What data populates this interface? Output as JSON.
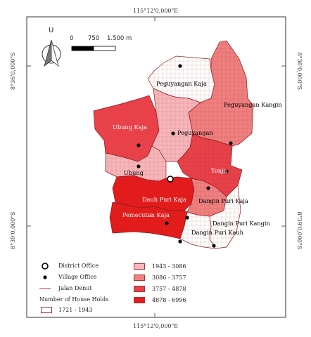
{
  "coords": {
    "top_lon": "115°12'0,000\"E",
    "bottom_lon": "115°12'0,000\"E",
    "left_lat_upper": "8°36'0,000\"S",
    "left_lat_lower": "8°39'0,000\"S",
    "right_lat_upper": "8°36'0,000\"S",
    "right_lat_lower": "8°39'0,000\"S"
  },
  "north_arrow": {
    "letter": "U"
  },
  "scale_bar": {
    "labels": [
      "0",
      "750",
      "1.500 m"
    ]
  },
  "regions": [
    {
      "name": "Peguyangan Kaja",
      "color": "#ffffff"
    },
    {
      "name": "Peguyangan Kangin",
      "color": "#f08080"
    },
    {
      "name": "Ubung Kaja",
      "color": "#e8414a"
    },
    {
      "name": "Peguyangan",
      "color": "#f7b6bb"
    },
    {
      "name": "Ubung",
      "color": "#f7b6bb"
    },
    {
      "name": "Tonja",
      "color": "#e8414a"
    },
    {
      "name": "Dauh Puri Kaja",
      "color": "#e51c1c"
    },
    {
      "name": "Dangin Puri Kaja",
      "color": "#f08080"
    },
    {
      "name": "Pemecutan Kaja",
      "color": "#e51c1c"
    },
    {
      "name": "Dangin Puri Kangin",
      "color": "#ffffff"
    },
    {
      "name": "Dangin Puri Kauh",
      "color": "#ffffff"
    }
  ],
  "legend": {
    "district_office": "District Office",
    "village_office": "Village Office",
    "road": "Jalan Denut",
    "house_holds_title": "Number of House Holds",
    "classes": [
      {
        "label": "1721 - 1943",
        "color": "#ffffff"
      },
      {
        "label": "1943 - 3086",
        "color": "#f7b6bb"
      },
      {
        "label": "3086 - 3757",
        "color": "#f08080"
      },
      {
        "label": "3757 - 4878",
        "color": "#e8414a"
      },
      {
        "label": "4878 - 6996",
        "color": "#e51c1c"
      }
    ]
  }
}
